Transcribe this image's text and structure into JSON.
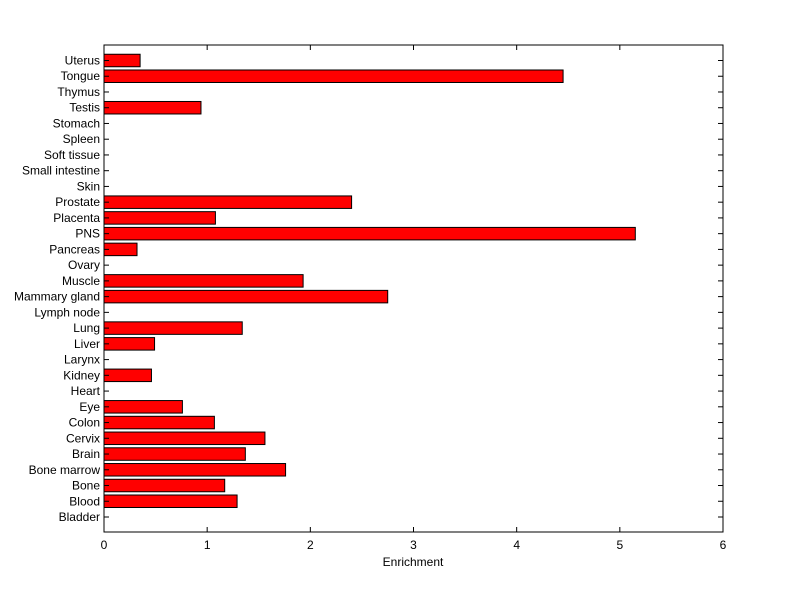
{
  "chart_data": {
    "type": "bar",
    "orientation": "horizontal",
    "categories": [
      "Uterus",
      "Tongue",
      "Thymus",
      "Testis",
      "Stomach",
      "Spleen",
      "Soft tissue",
      "Small intestine",
      "Skin",
      "Prostate",
      "Placenta",
      "PNS",
      "Pancreas",
      "Ovary",
      "Muscle",
      "Mammary gland",
      "Lymph node",
      "Lung",
      "Liver",
      "Larynx",
      "Kidney",
      "Heart",
      "Eye",
      "Colon",
      "Cervix",
      "Brain",
      "Bone marrow",
      "Bone",
      "Blood",
      "Bladder"
    ],
    "values": [
      0.35,
      4.45,
      0,
      0.94,
      0,
      0,
      0,
      0,
      0,
      2.4,
      1.08,
      5.15,
      0.32,
      0,
      1.93,
      2.75,
      0,
      1.34,
      0.49,
      0,
      0.46,
      0,
      0.76,
      1.07,
      1.56,
      1.37,
      1.76,
      1.17,
      1.29,
      0
    ],
    "title": "",
    "xlabel": "Enrichment",
    "ylabel": "",
    "xlim": [
      0,
      6
    ],
    "xticks": [
      "0",
      "1",
      "2",
      "3",
      "4",
      "5",
      "6"
    ],
    "bar_color": "#ff0000",
    "bar_edge_color": "#000000",
    "grid": false
  }
}
